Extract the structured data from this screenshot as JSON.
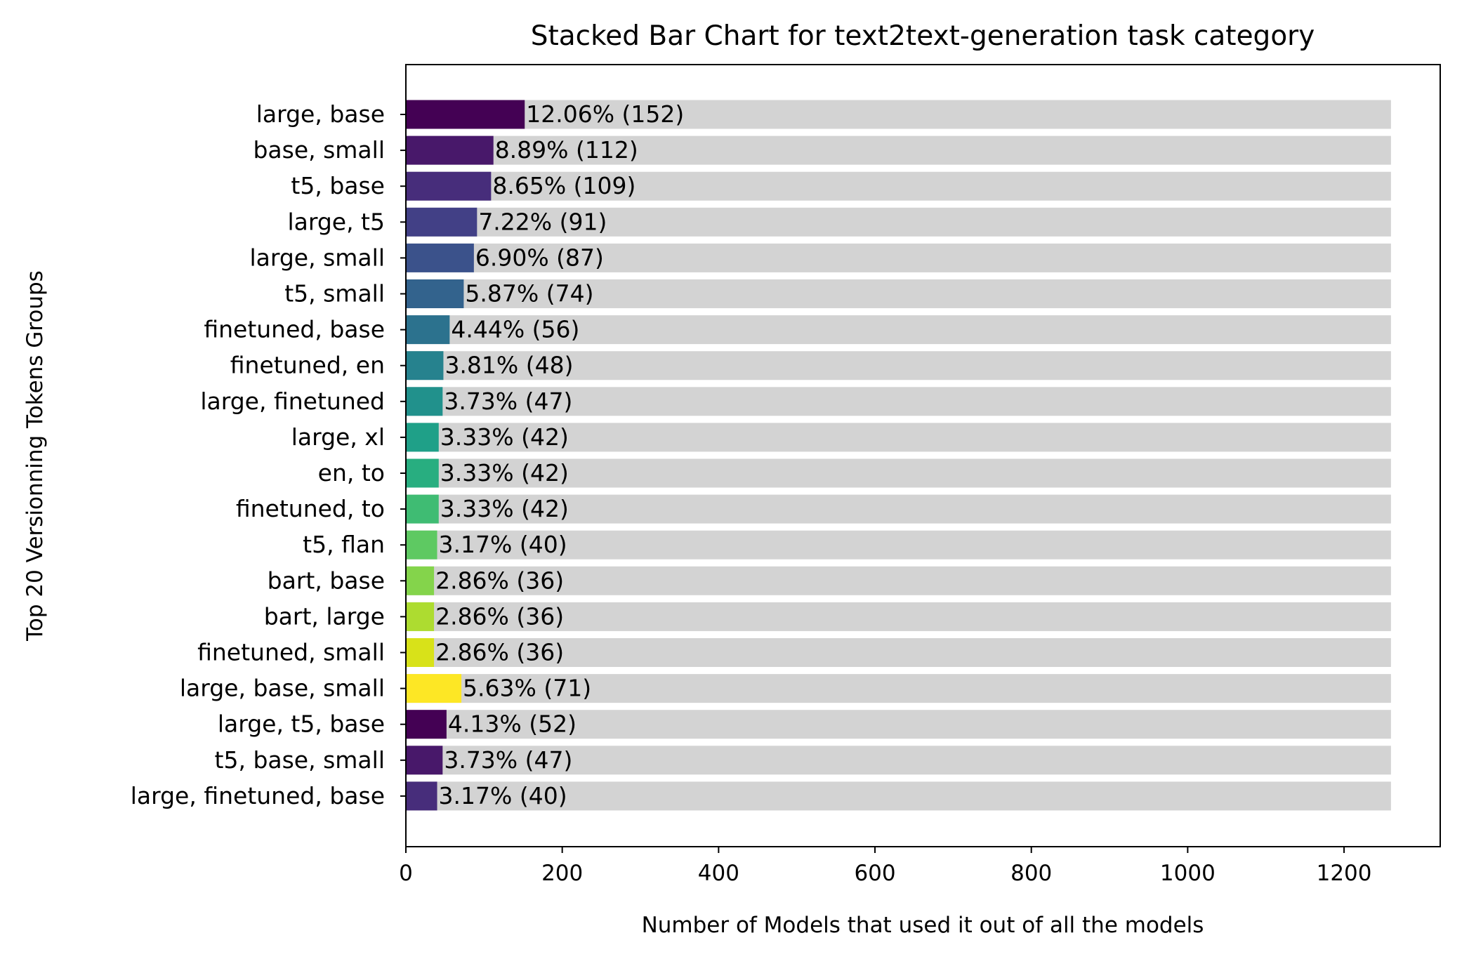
{
  "chart_data": {
    "type": "bar",
    "orientation": "horizontal",
    "stacked": true,
    "title": "Stacked Bar Chart for text2text-generation task category",
    "xlabel": "Number of Models that used it out of all the models",
    "ylabel": "Top 20 Versionning Tokens Groups",
    "xlim": [
      0,
      1323
    ],
    "xticks": [
      0,
      200,
      400,
      600,
      800,
      1000,
      1200
    ],
    "grid": false,
    "total": 1260,
    "background_color": "#d3d3d3",
    "categories": [
      "large, base",
      "base, small",
      "t5, base",
      "large, t5",
      "large, small",
      "t5, small",
      "finetuned, base",
      "finetuned, en",
      "large, finetuned",
      "large, xl",
      "en, to",
      "finetuned, to",
      "t5, flan",
      "bart, base",
      "bart, large",
      "finetuned, small",
      "large, base, small",
      "large, t5, base",
      "t5, base, small",
      "large, finetuned, base"
    ],
    "values": [
      152,
      112,
      109,
      91,
      87,
      74,
      56,
      48,
      47,
      42,
      42,
      42,
      40,
      36,
      36,
      36,
      71,
      52,
      47,
      40
    ],
    "labels": [
      "12.06% (152)",
      "8.89% (112)",
      "8.65% (109)",
      "7.22% (91)",
      "6.90% (87)",
      "5.87% (74)",
      "4.44% (56)",
      "3.81% (48)",
      "3.73% (47)",
      "3.33% (42)",
      "3.33% (42)",
      "3.33% (42)",
      "3.17% (40)",
      "2.86% (36)",
      "2.86% (36)",
      "2.86% (36)",
      "5.63% (71)",
      "4.13% (52)",
      "3.73% (47)",
      "3.17% (40)"
    ],
    "colors": [
      "#440154",
      "#48186a",
      "#472d7b",
      "#424086",
      "#3b528b",
      "#33638d",
      "#2c728e",
      "#26828e",
      "#21918c",
      "#1fa088",
      "#28ae80",
      "#3fbc73",
      "#5ec962",
      "#84d44b",
      "#addc30",
      "#d8e219",
      "#fde725",
      "#440154",
      "#48186a",
      "#472d7b"
    ]
  }
}
